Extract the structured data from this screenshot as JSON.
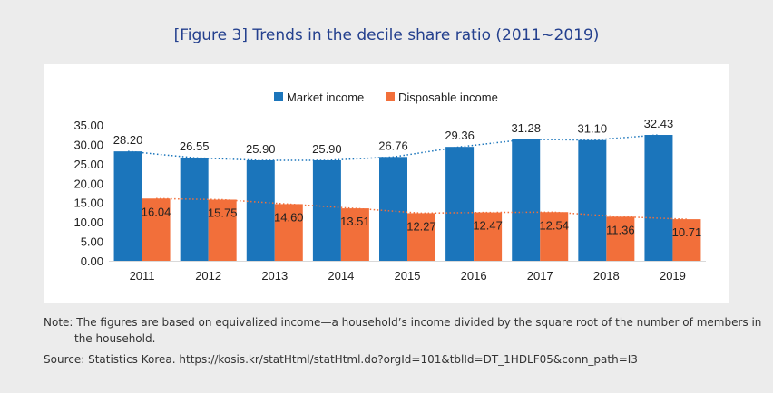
{
  "figure_title": "[Figure 3] Trends in the decile share ratio (2011~2019)",
  "note_line1": "Note: The figures are based on equivalized income—a household’s income divided by the square root of the number of members in",
  "note_line2": "the household.",
  "source": "Source: Statistics Korea. https://kosis.kr/statHtml/statHtml.do?orgId=101&tblId=DT_1HDLF05&conn_path=I3",
  "colors": {
    "market": "#1b75bb",
    "disposable": "#f26f3a",
    "title": "#24408e"
  },
  "chart_data": {
    "type": "bar",
    "title": "",
    "xlabel": "",
    "ylabel": "",
    "categories": [
      "2011",
      "2012",
      "2013",
      "2014",
      "2015",
      "2016",
      "2017",
      "2018",
      "2019"
    ],
    "series": [
      {
        "name": "Market income",
        "values": [
          28.2,
          26.55,
          25.9,
          25.9,
          26.76,
          29.36,
          31.28,
          31.1,
          32.43
        ]
      },
      {
        "name": "Disposable income",
        "values": [
          16.04,
          15.75,
          14.6,
          13.51,
          12.27,
          12.47,
          12.54,
          11.36,
          10.71
        ]
      }
    ],
    "ylim": [
      0,
      35
    ],
    "yticks": [
      "0.00",
      "5.00",
      "10.00",
      "15.00",
      "20.00",
      "25.00",
      "30.00",
      "35.00"
    ],
    "trendlines": "dotted",
    "grid": false,
    "legend_position": "top"
  }
}
